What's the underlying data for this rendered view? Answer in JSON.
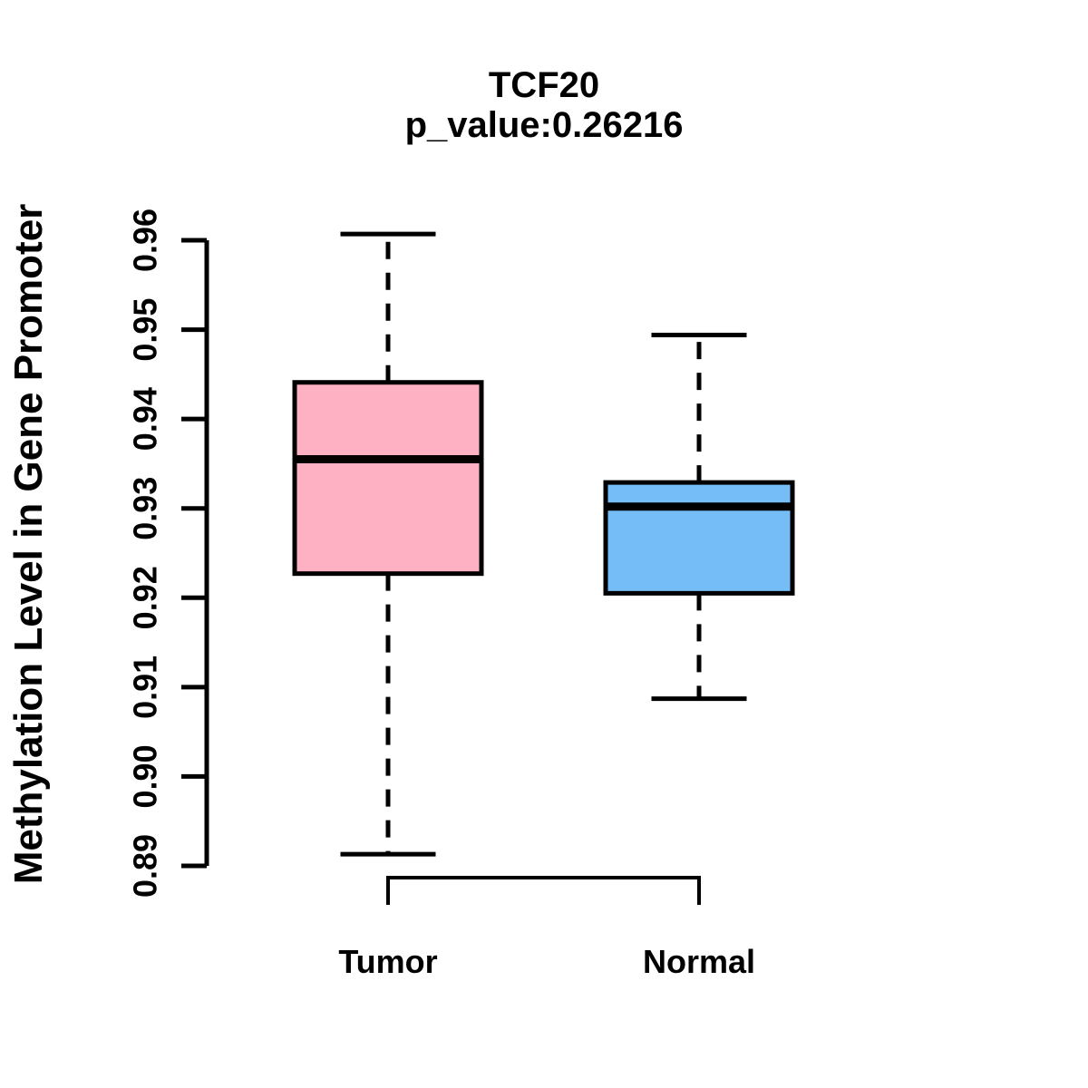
{
  "title": {
    "line1": "TCF20",
    "line2": "p_value:0.26216"
  },
  "ylabel": "Methylation Level in Gene Promoter",
  "chart_data": {
    "type": "boxplot",
    "title": "TCF20",
    "subtitle": "p_value:0.26216",
    "xlabel": "",
    "ylabel": "Methylation Level in Gene Promoter",
    "categories": [
      "Tumor",
      "Normal"
    ],
    "ylim": [
      0.89,
      0.96
    ],
    "yticks": [
      0.89,
      0.9,
      0.91,
      0.92,
      0.93,
      0.94,
      0.95,
      0.96
    ],
    "ytick_decimals": 2,
    "grid": false,
    "legend": "none",
    "colors": {
      "tumor_fill": "#FFB1C4",
      "normal_fill": "#74BDF7",
      "stroke": "#000000",
      "background": "#FFFFFF"
    },
    "series": [
      {
        "name": "Tumor",
        "color": "#FFB1C4",
        "whisker_low": 0.8913,
        "q1": 0.9227,
        "median": 0.9355,
        "q3": 0.9441,
        "whisker_high": 0.9607
      },
      {
        "name": "Normal",
        "color": "#74BDF7",
        "whisker_low": 0.9087,
        "q1": 0.9205,
        "median": 0.9302,
        "q3": 0.9329,
        "whisker_high": 0.9494
      }
    ]
  }
}
